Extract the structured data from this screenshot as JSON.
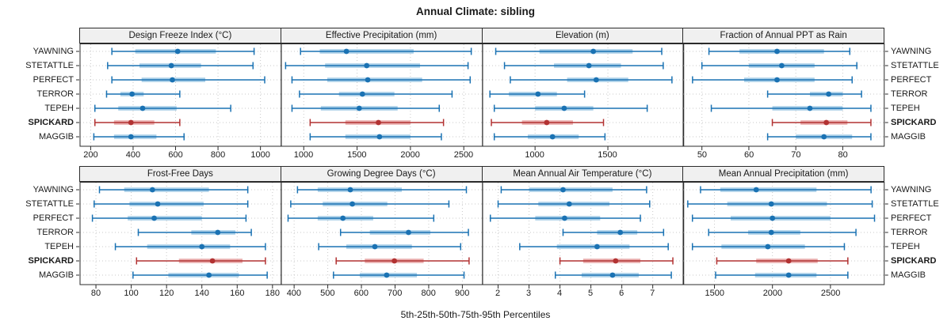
{
  "figure": {
    "title": "Annual Climate: sibling",
    "caption": "5th-25th-50th-75th-95th Percentiles",
    "colors": {
      "series_dark": "#1a72b3",
      "series_light": "#a9cfe8",
      "highlight_dark": "#b23232",
      "highlight_light": "#e9aeae",
      "header_bg": "#f0f0f0",
      "panel_border": "#2b2b2b",
      "grid": "#c9c9c9",
      "text": "#1a1a1a"
    }
  },
  "chart_data": {
    "type": "dotplot-percentiles",
    "title": "Annual Climate: sibling",
    "xlabel_shared": "5th-25th-50th-75th-95th Percentiles",
    "percentiles": [
      5,
      25,
      50,
      75,
      95
    ],
    "sites": [
      "YAWNING",
      "STETATTLE",
      "PERFECT",
      "TERROR",
      "TEPEH",
      "SPICKARD",
      "MAGGIB"
    ],
    "highlight_site": "SPICKARD",
    "layout": {
      "rows": 2,
      "cols": 4,
      "grid": "dotted",
      "site_labels": "both-sides"
    },
    "panels": [
      {
        "title": "Design Freeze Index (°C)",
        "ticks": [
          200,
          400,
          600,
          800,
          1000
        ],
        "xlim": [
          150,
          1090
        ],
        "values": [
          [
            300,
            410,
            610,
            790,
            970
          ],
          [
            280,
            430,
            580,
            720,
            965
          ],
          [
            300,
            440,
            585,
            740,
            1020
          ],
          [
            275,
            340,
            395,
            450,
            620
          ],
          [
            220,
            330,
            445,
            605,
            860
          ],
          [
            220,
            310,
            390,
            500,
            620
          ],
          [
            215,
            310,
            390,
            510,
            640
          ]
        ]
      },
      {
        "title": "Effective Precipitation (mm)",
        "ticks": [
          1000,
          1500,
          2000,
          2500
        ],
        "xlim": [
          790,
          2660
        ],
        "values": [
          [
            970,
            1150,
            1400,
            2030,
            2570
          ],
          [
            830,
            1200,
            1590,
            2090,
            2540
          ],
          [
            890,
            1220,
            1600,
            2110,
            2560
          ],
          [
            960,
            1330,
            1550,
            1850,
            2390
          ],
          [
            890,
            1160,
            1520,
            1880,
            2270
          ],
          [
            1060,
            1390,
            1700,
            2000,
            2310
          ],
          [
            1060,
            1390,
            1710,
            2000,
            2290
          ]
        ]
      },
      {
        "title": "Elevation (m)",
        "ticks": [
          1000,
          1500
        ],
        "xlim": [
          640,
          2010
        ],
        "values": [
          [
            730,
            1030,
            1400,
            1670,
            1870
          ],
          [
            790,
            1130,
            1370,
            1590,
            1880
          ],
          [
            830,
            1220,
            1420,
            1640,
            1940
          ],
          [
            690,
            820,
            1020,
            1150,
            1340
          ],
          [
            720,
            1000,
            1200,
            1400,
            1770
          ],
          [
            700,
            910,
            1080,
            1260,
            1470
          ],
          [
            720,
            950,
            1120,
            1300,
            1480
          ]
        ]
      },
      {
        "title": "Fraction of Annual PPT as Rain",
        "ticks": [
          50,
          60,
          70,
          80
        ],
        "xlim": [
          46,
          88.5
        ],
        "values": [
          [
            51.5,
            58,
            66,
            76,
            81.5
          ],
          [
            50,
            60,
            67,
            74,
            83
          ],
          [
            48,
            59,
            66,
            74,
            82
          ],
          [
            64,
            73,
            77,
            80,
            84
          ],
          [
            52,
            65,
            73,
            80,
            86
          ],
          [
            65,
            71,
            76.5,
            81,
            86
          ],
          [
            64,
            70,
            76,
            82,
            86
          ]
        ]
      },
      {
        "title": "Frost-Free Days",
        "ticks": [
          80,
          100,
          120,
          140,
          160,
          180
        ],
        "xlim": [
          71,
          184
        ],
        "values": [
          [
            82,
            96,
            112,
            144,
            166
          ],
          [
            79,
            99,
            115,
            141,
            166
          ],
          [
            78,
            98,
            113,
            140,
            165
          ],
          [
            104,
            134,
            149,
            159,
            168
          ],
          [
            91,
            109,
            140,
            156,
            176
          ],
          [
            103,
            127,
            146,
            163,
            176
          ],
          [
            101,
            121,
            144,
            161,
            177
          ]
        ]
      },
      {
        "title": "Growing Degree Days (°C)",
        "ticks": [
          400,
          500,
          600,
          700,
          800,
          900
        ],
        "xlim": [
          362,
          955
        ],
        "values": [
          [
            410,
            470,
            567,
            720,
            912
          ],
          [
            390,
            485,
            573,
            677,
            860
          ],
          [
            382,
            470,
            545,
            635,
            815
          ],
          [
            538,
            625,
            740,
            805,
            918
          ],
          [
            473,
            555,
            640,
            750,
            895
          ],
          [
            525,
            610,
            698,
            785,
            920
          ],
          [
            517,
            595,
            675,
            765,
            905
          ]
        ]
      },
      {
        "title": "Mean Annual Air Temperature (°C)",
        "ticks": [
          2,
          3,
          4,
          5,
          6,
          7
        ],
        "xlim": [
          1.5,
          7.95
        ],
        "values": [
          [
            2.1,
            3.0,
            4.1,
            5.7,
            6.8
          ],
          [
            2.0,
            3.3,
            4.3,
            5.6,
            6.9
          ],
          [
            1.75,
            3.2,
            4.15,
            5.3,
            6.6
          ],
          [
            4.1,
            5.2,
            5.95,
            6.5,
            7.35
          ],
          [
            2.7,
            3.9,
            5.2,
            6.25,
            7.5
          ],
          [
            4.0,
            4.75,
            5.8,
            6.6,
            7.65
          ],
          [
            3.85,
            4.7,
            5.7,
            6.55,
            7.6
          ]
        ]
      },
      {
        "title": "Mean Annual Precipitation (mm)",
        "ticks": [
          1500,
          2000,
          2500
        ],
        "xlim": [
          1230,
          2950
        ],
        "values": [
          [
            1380,
            1550,
            1860,
            2380,
            2850
          ],
          [
            1270,
            1610,
            1990,
            2470,
            2860
          ],
          [
            1310,
            1640,
            2000,
            2500,
            2880
          ],
          [
            1450,
            1790,
            1990,
            2240,
            2720
          ],
          [
            1310,
            1560,
            1960,
            2280,
            2620
          ],
          [
            1520,
            1860,
            2140,
            2390,
            2650
          ],
          [
            1510,
            1850,
            2140,
            2380,
            2650
          ]
        ]
      }
    ]
  }
}
